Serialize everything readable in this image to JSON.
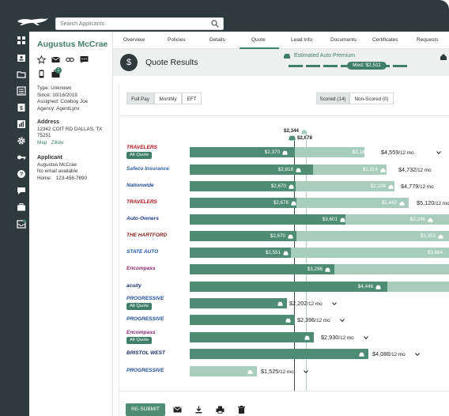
{
  "header": {
    "search_placeholder": "Search Applicants"
  },
  "sidebar_icons": [
    "dashboard-icon",
    "contacts-icon",
    "folder-icon",
    "list-icon",
    "calculator-icon",
    "chart-icon",
    "gear-icon",
    "key-icon",
    "help-icon",
    "chat-icon",
    "briefcase-icon",
    "inbox-icon"
  ],
  "customer": {
    "name": "Augustus McCrae",
    "type_label": "Type:",
    "type_value": "Unknown",
    "since_label": "Since:",
    "since_value": "10/16/2019",
    "assigned_label": "Assigned:",
    "assigned_value": "Cowboy Joe",
    "agency_label": "Agency:",
    "agency_value": "AgentLynx",
    "address_heading": "Address",
    "address_line1": "12342 COIT RD DALLAS, TX",
    "address_line2": "75251",
    "map_link": "Map",
    "zillow_link": "Zillow",
    "applicant_heading": "Applicant",
    "applicant_name": "Augustus McCrae",
    "email": "No email available",
    "phone_label": "Home:",
    "phone_value": "123-456-7890",
    "icon_badge": "1"
  },
  "tabs": [
    "Overview",
    "Policies",
    "Details",
    "Quote",
    "Lead Info",
    "Documents",
    "Certificates",
    "Requests"
  ],
  "quote": {
    "title": "Quote Results",
    "estimated_label": "Estimated Auto Premium",
    "median_label": "Med: $2,511",
    "pay_options": [
      "Full Pay",
      "Monthly",
      "EFT"
    ],
    "scored_label": "Scored (14)",
    "nonscored_label": "Non-Scored (0)",
    "marker_home": "$2,344",
    "marker_auto": "$2,678",
    "resubmit_label": "RE-SUBMIT"
  },
  "carriers": [
    {
      "name": "TRAVELERS",
      "alt": "Alt Quote",
      "auto": "$2,370",
      "home": "$2,189",
      "total": "$4,559",
      "per": "/12 mo"
    },
    {
      "name": "Safeco Insurance",
      "alt": "",
      "auto": "$2,818",
      "home": "$1,914",
      "total": "$4,732",
      "per": "/12 mo"
    },
    {
      "name": "Nationwide",
      "alt": "",
      "auto": "$2,670",
      "home": "$2,108",
      "total": "$4,779",
      "per": "/12 mo"
    },
    {
      "name": "TRAVELERS",
      "alt": "",
      "auto": "$2,678",
      "home": "$2,442",
      "total": "$5,120",
      "per": "/12 mo"
    },
    {
      "name": "Auto-Owners",
      "alt": "",
      "auto": "$3,601",
      "home": "$2,246",
      "total": "",
      "per": ""
    },
    {
      "name": "THE HARTFORD",
      "alt": "",
      "auto": "$2,670",
      "home": "$3,353",
      "total": "",
      "per": ""
    },
    {
      "name": "STATE AUTO",
      "alt": "",
      "auto": "$2,551",
      "home": "$3,664",
      "total": "",
      "per": ""
    },
    {
      "name": "Encompass",
      "alt": "",
      "auto": "$3,296",
      "home": "",
      "total": "",
      "per": ""
    },
    {
      "name": "acuity",
      "alt": "",
      "auto": "$4,446",
      "home": "",
      "total": "",
      "per": ""
    },
    {
      "name": "PROGRESSIVE",
      "alt": "Alt Quote",
      "auto": "",
      "home": "",
      "total": "$2,202",
      "per": "/12 mo"
    },
    {
      "name": "PROGRESSIVE",
      "alt": "",
      "auto": "",
      "home": "",
      "total": "$2,396",
      "per": "/12 mo"
    },
    {
      "name": "Encompass",
      "alt": "Alt Quote",
      "auto": "",
      "home": "",
      "total": "$2,930",
      "per": "/12 mo"
    },
    {
      "name": "BRISTOL WEST",
      "alt": "",
      "auto": "",
      "home": "",
      "total": "$4,088",
      "per": "/12 mo"
    },
    {
      "name": "PROGRESSIVE",
      "alt": "",
      "auto": "",
      "home": "",
      "total": "$1,525",
      "per": "/12 mo"
    }
  ],
  "colors": {
    "frame": "#2f3a3c",
    "accent": "#3f7f6a",
    "bar_dark": "#4e8c74",
    "bar_light": "#a8cdbd"
  }
}
